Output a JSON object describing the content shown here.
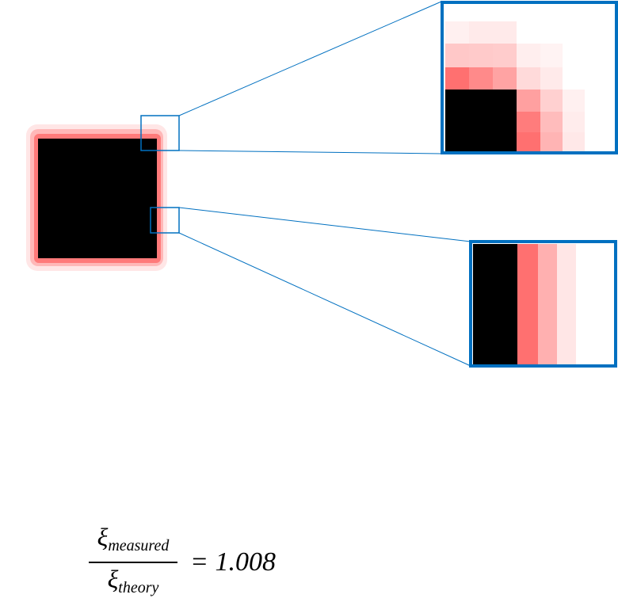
{
  "colors": {
    "square": "#000000",
    "halo_levels": [
      "#ff7070",
      "#ffb0b0",
      "#ffe0e0",
      "#ffffff"
    ],
    "callout_border": "#0070c0",
    "connector": "#0070c0"
  },
  "formula": {
    "numerator_symbol": "ξ",
    "numerator_subscript": "measured",
    "denominator_symbol": "ξ",
    "denominator_subscript": "theory",
    "result": "= 1.008"
  }
}
